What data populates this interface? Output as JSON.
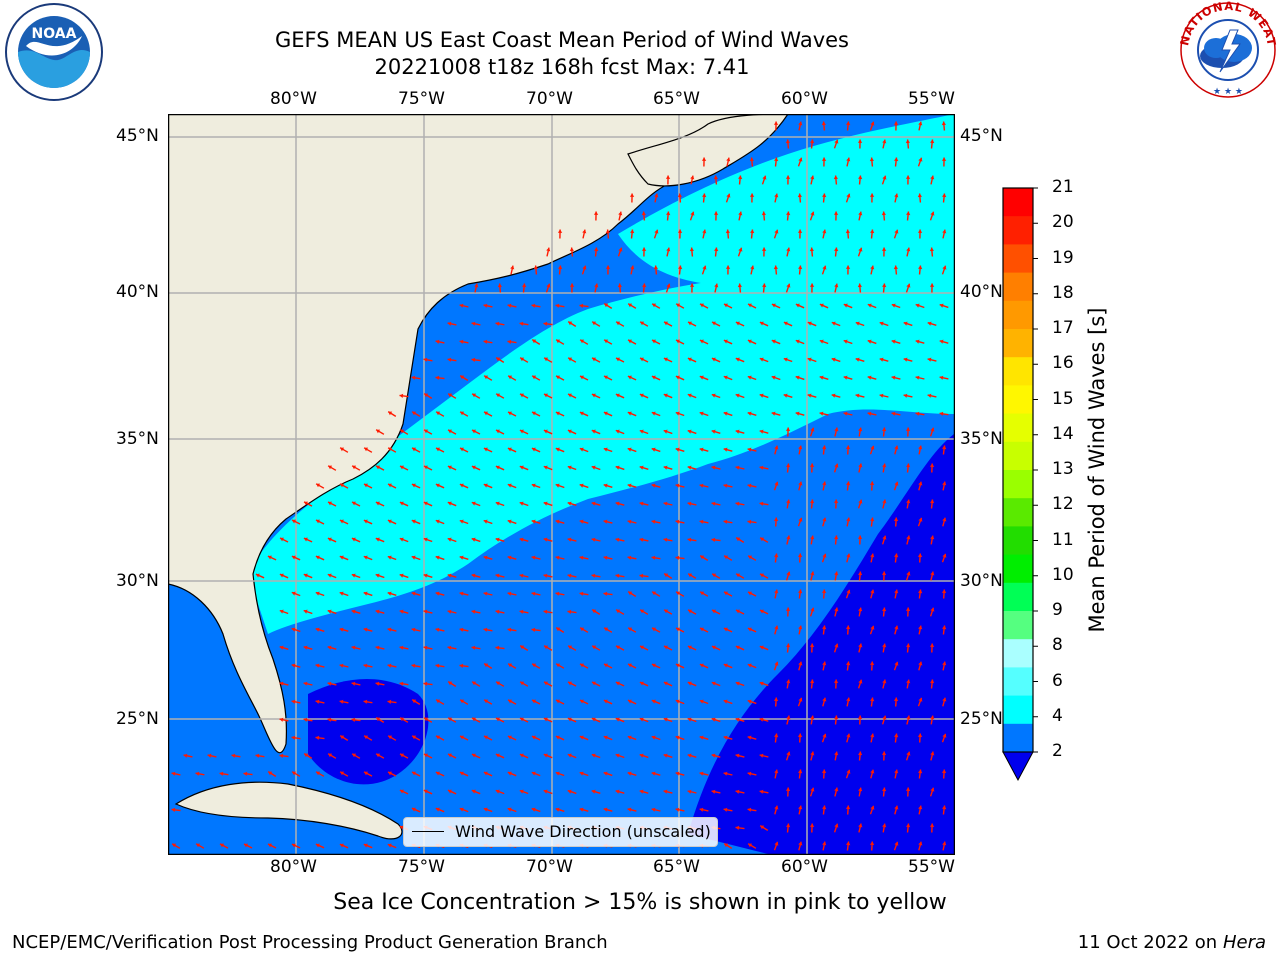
{
  "title": {
    "line1": "GEFS MEAN US East Coast Mean Period of Wind Waves",
    "line2": "20221008 t18z 168h fcst   Max: 7.41"
  },
  "map": {
    "lon_ticks": [
      "80°W",
      "75°W",
      "70°W",
      "65°W",
      "60°W",
      "55°W"
    ],
    "lat_ticks": [
      "45°N",
      "40°N",
      "35°N",
      "30°N",
      "25°N"
    ],
    "legend_label": "Wind Wave Direction (unscaled)",
    "colors": {
      "land": "#efedde",
      "ocean_2_4": "#0077ff",
      "ocean_below_2": "#0000ee",
      "ocean_4_6": "#00ffff",
      "ocean_6_8": "#55ffff",
      "arrow": "#ff1a00",
      "grid": "#b0b0b0"
    }
  },
  "colorbar": {
    "label": "Mean Period of Wind Waves [s]",
    "ticks": [
      "21",
      "20",
      "19",
      "18",
      "17",
      "16",
      "15",
      "14",
      "13",
      "12",
      "11",
      "10",
      "9",
      "8",
      "6",
      "4",
      "2"
    ],
    "colors": [
      "#ff0000",
      "#ff2000",
      "#ff5000",
      "#ff7f00",
      "#ff9900",
      "#ffb300",
      "#ffe500",
      "#fff700",
      "#e5ff00",
      "#c8ff00",
      "#9aff00",
      "#5aea00",
      "#22dd00",
      "#00ee00",
      "#00ff55",
      "#55ff80",
      "#aaffff",
      "#55ffff",
      "#00ffff",
      "#0077ff"
    ],
    "extend_color": "#0000ee"
  },
  "sea_ice_note": "Sea Ice Concentration > 15% is shown in pink to yellow",
  "footer": {
    "left": "NCEP/EMC/Verification Post Processing Product Generation Branch",
    "right_date": "11 Oct 2022 on ",
    "right_host": "Hera"
  },
  "logos": {
    "noaa_text": "NOAA",
    "nws_text": "NATIONAL WEATHER SERVICE"
  }
}
